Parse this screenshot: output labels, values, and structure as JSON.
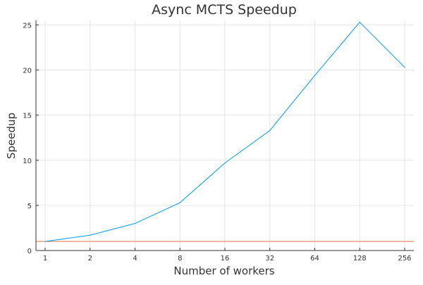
{
  "chart_data": {
    "type": "line",
    "title": "Async MCTS Speedup",
    "xlabel": "Number of workers",
    "ylabel": "Speedup",
    "x_scale": "log2",
    "x": [
      1,
      2,
      4,
      8,
      16,
      32,
      64,
      128,
      256
    ],
    "x_tick_labels": [
      "1",
      "2",
      "4",
      "8",
      "16",
      "32",
      "64",
      "128",
      "256"
    ],
    "y_ticks": [
      0,
      5,
      10,
      15,
      20,
      25
    ],
    "ylim": [
      0,
      25.5
    ],
    "grid": true,
    "legend": "none",
    "series": [
      {
        "values": [
          1.0,
          1.7,
          3.0,
          5.3,
          9.7,
          13.3,
          19.4,
          25.3,
          20.3
        ],
        "color": "#009AFA"
      }
    ],
    "reference_lines": [
      {
        "y": 1,
        "color": "#E26F46"
      }
    ]
  }
}
